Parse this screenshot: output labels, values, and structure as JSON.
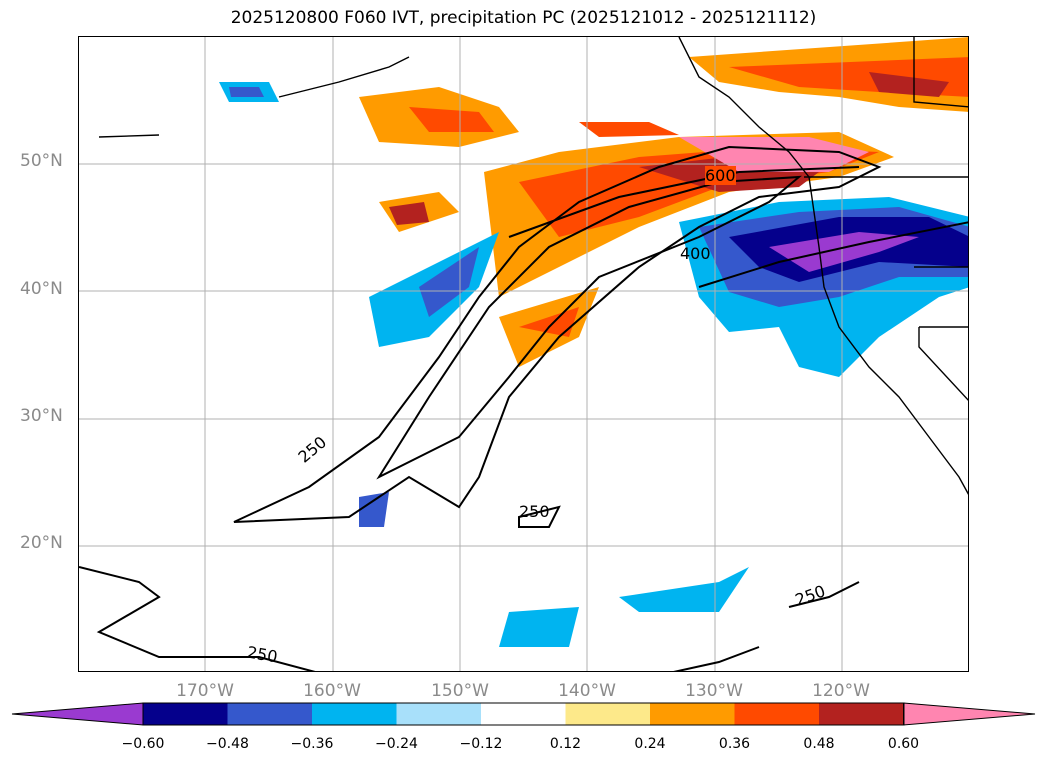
{
  "title": "2025120800 F060 IVT, precipitation PC (2025121012 - 2025121112)",
  "map": {
    "projection": "lat-lon",
    "lon_range": [
      -180,
      -110
    ],
    "lat_range": [
      10,
      60
    ],
    "gridlines": true
  },
  "lat_labels": [
    "50°N",
    "40°N",
    "30°N",
    "20°N"
  ],
  "lon_labels": [
    "170°W",
    "160°W",
    "150°W",
    "140°W",
    "130°W",
    "120°W"
  ],
  "ivt_contour_labels": [
    "600",
    "400",
    "250",
    "250",
    "250",
    "250"
  ],
  "colorbar": {
    "ticks": [
      "−0.60",
      "−0.48",
      "−0.36",
      "−0.24",
      "−0.12",
      "0.12",
      "0.24",
      "0.36",
      "0.48",
      "0.60"
    ],
    "colors": [
      "#9a3ad0",
      "#05008c",
      "#3558cc",
      "#00b4f0",
      "#a8e0fa",
      "#ffffff",
      "#fde98a",
      "#ff9b00",
      "#ff4a00",
      "#b3221f",
      "#ff85b0"
    ]
  }
}
